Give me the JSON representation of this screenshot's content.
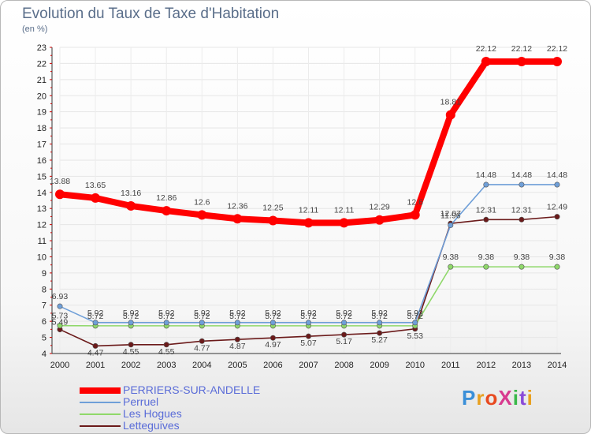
{
  "chart_data": {
    "type": "line",
    "title": "Evolution du Taux de Taxe d'Habitation",
    "subtitle": "(en %)",
    "x": [
      "2000",
      "2001",
      "2002",
      "2003",
      "2004",
      "2005",
      "2006",
      "2007",
      "2008",
      "2009",
      "2010",
      "2011",
      "2012",
      "2013",
      "2014"
    ],
    "ylim": [
      4,
      23
    ],
    "yticks": [
      4,
      5,
      6,
      7,
      8,
      9,
      10,
      11,
      12,
      13,
      14,
      15,
      16,
      17,
      18,
      19,
      20,
      21,
      22,
      23
    ],
    "series": [
      {
        "name": "PERRIERS-SUR-ANDELLE",
        "color": "#ff0000",
        "values": [
          13.88,
          13.65,
          13.16,
          12.86,
          12.6,
          12.36,
          12.25,
          12.11,
          12.11,
          12.29,
          12.6,
          18.81,
          22.12,
          22.12,
          22.12
        ],
        "labels": [
          "13.88",
          "13.65",
          "13.16",
          "12.86",
          "12.6",
          "12.36",
          "12.25",
          "12.11",
          "12.11",
          "12.29",
          "12.6",
          "18.81",
          "22.12",
          "22.12",
          "22.12"
        ]
      },
      {
        "name": "Perruel",
        "color": "#6f9fd8",
        "values": [
          6.93,
          5.92,
          5.92,
          5.92,
          5.92,
          5.92,
          5.92,
          5.92,
          5.92,
          5.92,
          5.92,
          11.96,
          14.48,
          14.48,
          14.48
        ],
        "labels": [
          "6.93",
          "5.92",
          "5.92",
          "5.92",
          "5.92",
          "5.92",
          "5.92",
          "5.92",
          "5.92",
          "5.92",
          "5.92",
          "11.96",
          "14.48",
          "14.48",
          "14.48"
        ]
      },
      {
        "name": "Les Hogues",
        "color": "#8fd86a",
        "values": [
          5.73,
          5.72,
          5.72,
          5.72,
          5.72,
          5.72,
          5.72,
          5.72,
          5.72,
          5.72,
          5.72,
          9.38,
          9.38,
          9.38,
          9.38
        ],
        "labels": [
          "5.73",
          "5.72",
          "5.72",
          "5.72",
          "5.72",
          "5.72",
          "5.72",
          "5.72",
          "5.72",
          "5.72",
          "5.72",
          "9.38",
          "9.38",
          "9.38",
          "9.38"
        ]
      },
      {
        "name": "Letteguives",
        "color": "#6b1a1a",
        "values": [
          5.49,
          4.47,
          4.55,
          4.55,
          4.77,
          4.87,
          4.97,
          5.07,
          5.17,
          5.27,
          5.53,
          12.07,
          12.31,
          12.31,
          12.49
        ],
        "labels": [
          "5.49",
          "4.47",
          "4.55",
          "4.55",
          "4.77",
          "4.87",
          "4.97",
          "5.07",
          "5.17",
          "5.27",
          "5.53",
          "12.07",
          "12.31",
          "12.31",
          "12.49"
        ]
      }
    ]
  },
  "logo": {
    "text": "ProXiti",
    "letters": [
      "P",
      "r",
      "o",
      "X",
      "i",
      "t",
      "i"
    ],
    "colors": [
      "#3a8fd8",
      "#e8a020",
      "#e84a20",
      "#d83a8f",
      "#3ab84a",
      "#8a4ad8",
      "#e8a020"
    ]
  }
}
